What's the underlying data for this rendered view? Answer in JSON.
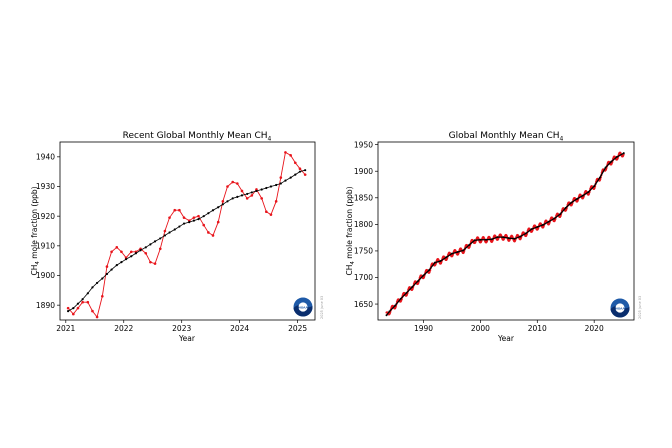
{
  "charts": [
    {
      "title_main": "Recent Global Monthly Mean CH",
      "title_sub": "4",
      "xlabel": "Year",
      "ylabel_main": "CH",
      "ylabel_sub": "4",
      "ylabel_rest": " mole fraction (ppb)",
      "credit": "2025 June 03",
      "logo": "noaa-logo"
    },
    {
      "title_main": "Global Monthly Mean CH",
      "title_sub": "4",
      "xlabel": "Year",
      "ylabel_main": "CH",
      "ylabel_sub": "4",
      "ylabel_rest": " mole fraction (ppb)",
      "credit": "2025 June 03",
      "logo": "noaa-logo"
    }
  ],
  "chart_data": [
    {
      "type": "line",
      "title": "Recent Global Monthly Mean CH4",
      "xlabel": "Year",
      "ylabel": "CH4 mole fraction (ppb)",
      "xlim": [
        2020.9,
        2025.3
      ],
      "ylim": [
        1885,
        1945
      ],
      "xticks": [
        2021,
        2022,
        2023,
        2024,
        2025
      ],
      "yticks": [
        1890,
        1900,
        1910,
        1920,
        1930,
        1940
      ],
      "grid": false,
      "colors": {
        "monthly": "#e8141b",
        "trend": "#000000"
      },
      "series": [
        {
          "role": "monthly",
          "x": [
            2021.04,
            2021.13,
            2021.21,
            2021.29,
            2021.38,
            2021.46,
            2021.54,
            2021.63,
            2021.71,
            2021.79,
            2021.88,
            2021.96,
            2022.04,
            2022.13,
            2022.21,
            2022.29,
            2022.38,
            2022.46,
            2022.54,
            2022.63,
            2022.71,
            2022.79,
            2022.88,
            2022.96,
            2023.04,
            2023.13,
            2023.21,
            2023.29,
            2023.38,
            2023.46,
            2023.54,
            2023.63,
            2023.71,
            2023.79,
            2023.88,
            2023.96,
            2024.04,
            2024.13,
            2024.21,
            2024.29,
            2024.38,
            2024.46,
            2024.54,
            2024.63,
            2024.71,
            2024.79,
            2024.88,
            2024.96,
            2025.04,
            2025.13
          ],
          "y": [
            1889,
            1887,
            1889,
            1891,
            1891,
            1888,
            1886,
            1893,
            1903,
            1908,
            1909.5,
            1908,
            1906,
            1908,
            1908,
            1909,
            1907.5,
            1904.5,
            1904,
            1909,
            1915,
            1919.5,
            1922,
            1922,
            1919.5,
            1918.5,
            1919.5,
            1920,
            1917,
            1914.5,
            1913.5,
            1918,
            1925,
            1930,
            1931.5,
            1931,
            1928.5,
            1926,
            1927,
            1929,
            1926,
            1921.5,
            1920.5,
            1925,
            1933,
            1941.5,
            1940.5,
            1938,
            1936,
            1934
          ]
        },
        {
          "role": "trend",
          "x": [
            2021.04,
            2021.13,
            2021.21,
            2021.29,
            2021.38,
            2021.46,
            2021.54,
            2021.63,
            2021.71,
            2021.79,
            2021.88,
            2021.96,
            2022.04,
            2022.13,
            2022.21,
            2022.29,
            2022.38,
            2022.46,
            2022.54,
            2022.63,
            2022.71,
            2022.79,
            2022.88,
            2022.96,
            2023.04,
            2023.13,
            2023.21,
            2023.29,
            2023.38,
            2023.46,
            2023.54,
            2023.63,
            2023.71,
            2023.79,
            2023.88,
            2023.96,
            2024.04,
            2024.13,
            2024.21,
            2024.29,
            2024.38,
            2024.46,
            2024.54,
            2024.63,
            2024.71,
            2024.79,
            2024.88,
            2024.96,
            2025.04,
            2025.13
          ],
          "y": [
            1888,
            1889,
            1890.5,
            1892,
            1894,
            1896,
            1897.5,
            1899,
            1900.5,
            1902,
            1903.5,
            1904.5,
            1905.5,
            1906.5,
            1907.5,
            1908.5,
            1909.5,
            1910.5,
            1911.5,
            1912.5,
            1913.5,
            1914.5,
            1915.5,
            1916.5,
            1917.5,
            1918,
            1918.5,
            1919,
            1920,
            1921,
            1922,
            1923,
            1924,
            1925,
            1926,
            1926.5,
            1927,
            1927.5,
            1928,
            1928.5,
            1929,
            1929.5,
            1930,
            1930.5,
            1931,
            1932,
            1933,
            1934,
            1935,
            1935.5
          ]
        }
      ]
    },
    {
      "type": "line",
      "title": "Global Monthly Mean CH4",
      "xlabel": "Year",
      "ylabel": "CH4 mole fraction (ppb)",
      "xlim": [
        1982,
        2027
      ],
      "ylim": [
        1620,
        1955
      ],
      "xticks": [
        1990,
        2000,
        2010,
        2020
      ],
      "yticks": [
        1650,
        1700,
        1750,
        1800,
        1850,
        1900,
        1950
      ],
      "grid": false,
      "colors": {
        "monthly": "#e8141b",
        "trend": "#000000"
      },
      "trend_points": {
        "x": [
          1983.5,
          1984,
          1985,
          1986,
          1987,
          1988,
          1989,
          1990,
          1991,
          1992,
          1993,
          1994,
          1995,
          1996,
          1997,
          1998,
          1999,
          2000,
          2001,
          2002,
          2003,
          2004,
          2005,
          2006,
          2007,
          2008,
          2009,
          2010,
          2011,
          2012,
          2013,
          2014,
          2015,
          2016,
          2017,
          2018,
          2019,
          2020,
          2021,
          2022,
          2023,
          2024,
          2025.2
        ],
        "y": [
          1629,
          1636,
          1647,
          1660,
          1671,
          1682,
          1693,
          1704,
          1714,
          1728,
          1731,
          1738,
          1745,
          1748,
          1751,
          1761,
          1770,
          1771,
          1771,
          1772,
          1776,
          1776,
          1774,
          1773,
          1777,
          1783,
          1791,
          1795,
          1799,
          1805,
          1811,
          1819,
          1831,
          1841,
          1848,
          1854,
          1861,
          1872,
          1888,
          1907,
          1918,
          1927,
          1934
        ]
      },
      "seasonal_amplitude_ppb": 5
    }
  ]
}
